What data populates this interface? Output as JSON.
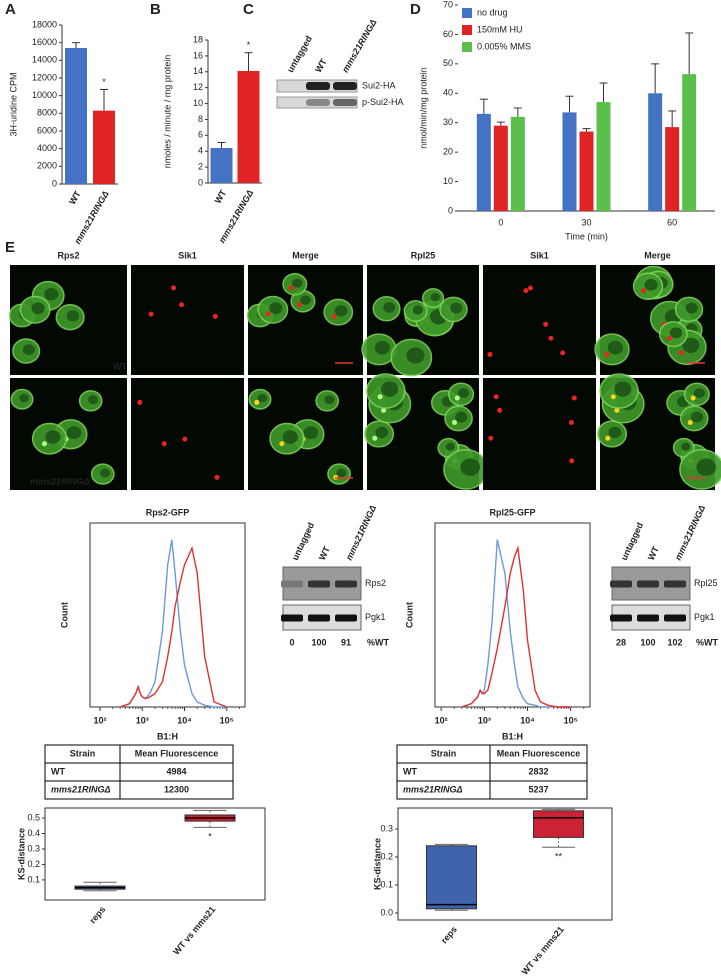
{
  "chart_data": [
    {
      "type": "bar",
      "panel": "A",
      "ylabel": "3H-uridine CPM",
      "categories": [
        "WT",
        "mms21RINGΔ"
      ],
      "values": [
        15400,
        8300
      ],
      "errors": [
        600,
        2400
      ],
      "colors": [
        "#4472c4",
        "#e02424"
      ],
      "annotation": "*",
      "ylim": [
        0,
        18000
      ],
      "yticks": [
        0,
        2000,
        4000,
        6000,
        8000,
        10000,
        12000,
        14000,
        16000,
        18000
      ]
    },
    {
      "type": "bar",
      "panel": "B",
      "ylabel": "nmoles / minute / mg protein",
      "categories": [
        "WT",
        "mms21RINGΔ"
      ],
      "values": [
        4.4,
        14.1
      ],
      "errors": [
        0.7,
        2.3
      ],
      "colors": [
        "#4472c4",
        "#e02424"
      ],
      "annotation": "*",
      "ylim": [
        0,
        18
      ],
      "yticks": [
        0,
        2,
        4,
        6,
        8,
        10,
        12,
        14,
        16,
        18
      ]
    },
    {
      "type": "bar",
      "panel": "D",
      "ylabel": "nmol/min/mg protein",
      "xlabel": "Time (min)",
      "categories": [
        "0",
        "30",
        "60"
      ],
      "legend": "top-left",
      "series": [
        {
          "name": "no drug",
          "color": "#4472c4",
          "values": [
            33,
            33.5,
            40
          ],
          "errors": [
            5,
            5.5,
            10
          ]
        },
        {
          "name": "150mM HU",
          "color": "#e02424",
          "values": [
            29,
            27,
            28.5
          ],
          "errors": [
            1.2,
            1,
            5.5
          ]
        },
        {
          "name": "0.005% MMS",
          "color": "#5cbf4c",
          "values": [
            32,
            37,
            46.5
          ],
          "errors": [
            3,
            6.5,
            14
          ]
        }
      ],
      "ylim": [
        0,
        70
      ],
      "yticks": [
        0,
        10,
        20,
        30,
        40,
        50,
        60,
        70
      ]
    },
    {
      "type": "line",
      "title": "Rps2-GFP",
      "xlabel": "B1:H",
      "ylabel": "Count",
      "xscale": "log",
      "x": [
        300,
        500,
        700,
        800,
        900,
        1000,
        1200,
        1500,
        2000,
        3000,
        4000,
        5000,
        6000,
        8000,
        10000,
        15000,
        20000,
        30000,
        50000,
        100000
      ],
      "series": [
        {
          "color": "#6a9bd6",
          "values": [
            0,
            2,
            8,
            12,
            8,
            6,
            5,
            8,
            15,
            45,
            85,
            100,
            80,
            45,
            25,
            8,
            3,
            1,
            0,
            0
          ]
        },
        {
          "color": "#e03030",
          "values": [
            0,
            2,
            8,
            12,
            8,
            6,
            5,
            6,
            8,
            15,
            30,
            45,
            60,
            75,
            85,
            95,
            80,
            30,
            3,
            0
          ]
        }
      ],
      "xlim": [
        58,
        270000
      ],
      "ylim": [
        0,
        110
      ],
      "xticks": [
        {
          "value": 100,
          "label": "10²"
        },
        {
          "value": 1000,
          "label": "10³"
        },
        {
          "value": 10000,
          "label": "10⁴"
        },
        {
          "value": 100000,
          "label": "10⁵"
        }
      ]
    },
    {
      "type": "line",
      "title": "Rpl25-GFP",
      "xlabel": "B1:H",
      "ylabel": "Count",
      "xscale": "log",
      "x": [
        300,
        500,
        700,
        800,
        900,
        1000,
        1200,
        1500,
        2000,
        3000,
        4000,
        5000,
        6000,
        8000,
        10000,
        15000,
        20000,
        30000,
        50000,
        100000
      ],
      "series": [
        {
          "color": "#6a9bd6",
          "values": [
            0,
            2,
            6,
            10,
            8,
            10,
            25,
            50,
            100,
            80,
            45,
            25,
            12,
            5,
            2,
            1,
            0,
            0,
            0,
            0
          ]
        },
        {
          "color": "#e03030",
          "values": [
            0,
            2,
            6,
            10,
            8,
            8,
            10,
            20,
            35,
            60,
            80,
            90,
            95,
            70,
            40,
            10,
            3,
            1,
            0,
            0
          ]
        }
      ],
      "xlim": [
        72,
        280000
      ],
      "ylim": [
        0,
        110
      ],
      "xticks": [
        {
          "value": 100,
          "label": "10²"
        },
        {
          "value": 1000,
          "label": "10³"
        },
        {
          "value": 10000,
          "label": "10⁴"
        },
        {
          "value": 100000,
          "label": "10⁵"
        }
      ]
    },
    {
      "type": "box",
      "ylabel": "KS-distance",
      "categories": [
        "reps",
        "WT vs mms21"
      ],
      "colors": [
        "#3f63ad",
        "#cc2233"
      ],
      "annotation": "*",
      "boxes": [
        {
          "min": 0.03,
          "q1": 0.04,
          "median": 0.05,
          "q3": 0.06,
          "max": 0.085
        },
        {
          "min": 0.44,
          "q1": 0.48,
          "median": 0.5,
          "q3": 0.52,
          "max": 0.55
        }
      ],
      "ylim": [
        -0.03,
        0.565
      ],
      "yticks": [
        0.1,
        0.2,
        0.3,
        0.4,
        0.5
      ]
    },
    {
      "type": "box",
      "ylabel": "KS-distance",
      "categories": [
        "reps",
        "WT vs mms21"
      ],
      "colors": [
        "#3f63ad",
        "#cc2233"
      ],
      "annotation": "**",
      "boxes": [
        {
          "min": 0.01,
          "q1": 0.015,
          "median": 0.03,
          "q3": 0.24,
          "max": 0.245
        },
        {
          "min": 0.235,
          "q1": 0.27,
          "median": 0.34,
          "q3": 0.365,
          "max": 0.37
        }
      ],
      "ylim": [
        -0.025,
        0.375
      ],
      "yticks": [
        {
          "value": 0,
          "label": "0.0"
        },
        0.1,
        0.2,
        0.3
      ]
    }
  ],
  "blot_c": {
    "panel": "C",
    "lanes": [
      "untagged",
      "WT",
      "mms21RINGΔ"
    ],
    "bands": [
      "Sui2-HA",
      "p-Sui2-HA"
    ]
  },
  "microscopy": {
    "panel": "E",
    "channels": [
      "Rps2",
      "Sik1",
      "Merge",
      "Rpl25",
      "Sik1",
      "Merge"
    ],
    "strains": [
      "WT",
      "mms21RINGΔ"
    ]
  },
  "blots": [
    {
      "lanes": [
        "untagged",
        "WT",
        "mms21RINGΔ"
      ],
      "bands": [
        "Rps2",
        "Pgk1"
      ],
      "percent": [
        0,
        100,
        91
      ],
      "percent_label": "%WT"
    },
    {
      "lanes": [
        "untagged",
        "WT",
        "mms21RINGΔ"
      ],
      "bands": [
        "Rpl25",
        "Pgk1"
      ],
      "percent": [
        28,
        100,
        102
      ],
      "percent_label": "%WT"
    }
  ],
  "tables": [
    {
      "header": [
        "Strain",
        "Mean Fluorescence"
      ],
      "rows": [
        [
          "WT",
          4984
        ],
        [
          "mms21RINGΔ",
          12300
        ]
      ]
    },
    {
      "header": [
        "Strain",
        "Mean Fluorescence"
      ],
      "rows": [
        [
          "WT",
          2832
        ],
        [
          "mms21RINGΔ",
          5237
        ]
      ]
    }
  ]
}
